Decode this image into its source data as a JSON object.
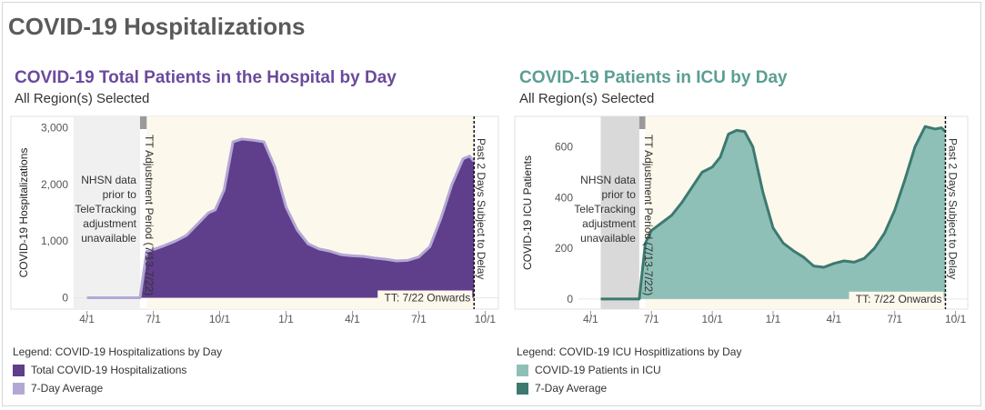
{
  "page": {
    "title": "COVID-19 Hospitalizations"
  },
  "colors": {
    "hosp_fill": "#5f3e8c",
    "hosp_avg": "#b3a8d4",
    "icu_fill": "#8fc0b8",
    "icu_avg": "#3c7a70",
    "title_purple": "#6a4a9c",
    "title_teal": "#5a9e94",
    "shade_left": "#f0f0f0",
    "shade_left_icu": "#d9d9d9",
    "shade_main": "#fdf8ec",
    "bar_gray": "#9a9a9a"
  },
  "charts": [
    {
      "title": "COVID-19 Total Patients in the Hospital by Day",
      "subtitle": "All Region(s) Selected",
      "legend_title": "Legend: COVID-19 Hospitalizations by Day",
      "legend_items": [
        "Total COVID-19 Hospitalizations",
        "7-Day Average"
      ],
      "annotations": {
        "left_note": [
          "NHSN data",
          "prior to",
          "TeleTracking",
          "adjustment",
          "unavailable"
        ],
        "adjustment": "TT Adjustment Period (7/13-7/22)",
        "onwards": "TT: 7/22 Onwards",
        "delay": "Past 2 Days Subject to Delay"
      }
    },
    {
      "title": "COVID-19 Patients in ICU by Day",
      "subtitle": "All Region(s) Selected",
      "legend_title": "Legend: COVID-19 ICU Hospitlizations by Day",
      "legend_items": [
        "COVID-19 Patients in ICU",
        "7-Day Average"
      ],
      "annotations": {
        "left_note": [
          "NHSN data",
          "prior to",
          "TeleTracking",
          "adjustment",
          "unavailable"
        ],
        "adjustment": "TT Adjustment Period (7/13-7/22)",
        "onwards": "TT: 7/22 Onwards",
        "delay": "Past 2 Days Subject to Delay"
      }
    }
  ],
  "chart_data": [
    {
      "type": "area",
      "title": "COVID-19 Total Patients in the Hospital by Day",
      "ylabel": "COVID-19 Hospitalizations",
      "xlabel": "",
      "x_ticks": [
        "4/1",
        "7/1",
        "10/1",
        "1/1",
        "4/1",
        "7/1",
        "10/1"
      ],
      "y_ticks": [
        "0",
        "1,000",
        "2,000",
        "3,000"
      ],
      "y_tick_values": [
        0,
        1000,
        2000,
        3000
      ],
      "ylim": [
        -200,
        3200
      ],
      "xlim_months": [
        -0.6,
        18.6
      ],
      "regions_months": {
        "nhsn_start": -0.6,
        "adjust_start": 2.4,
        "adjust_end": 2.7,
        "delay_line": 17.5
      },
      "series": [
        {
          "name": "Total COVID-19 Hospitalizations",
          "x_months": [
            0.0,
            2.4,
            2.7,
            3.0,
            3.5,
            4.0,
            4.5,
            5.0,
            5.5,
            5.8,
            6.2,
            6.6,
            7.0,
            7.5,
            8.0,
            8.5,
            9.0,
            9.5,
            10.0,
            10.5,
            11.0,
            11.5,
            12.0,
            12.5,
            13.0,
            13.5,
            14.0,
            14.5,
            15.0,
            15.5,
            16.0,
            16.5,
            17.0,
            17.3,
            17.5
          ],
          "values": [
            0,
            0,
            820,
            850,
            920,
            1000,
            1100,
            1300,
            1500,
            1550,
            1900,
            2750,
            2800,
            2780,
            2750,
            2300,
            1600,
            1200,
            950,
            860,
            820,
            760,
            740,
            730,
            700,
            680,
            650,
            660,
            720,
            900,
            1400,
            2000,
            2450,
            2500,
            2400
          ]
        },
        {
          "name": "7-Day Average",
          "x_months": [
            0.0,
            2.4,
            2.7,
            3.0,
            3.5,
            4.0,
            4.5,
            5.0,
            5.5,
            5.8,
            6.2,
            6.6,
            7.0,
            7.5,
            8.0,
            8.5,
            9.0,
            9.5,
            10.0,
            10.5,
            11.0,
            11.5,
            12.0,
            12.5,
            13.0,
            13.5,
            14.0,
            14.5,
            15.0,
            15.5,
            16.0,
            16.5,
            17.0,
            17.3,
            17.5
          ],
          "values": [
            0,
            0,
            820,
            850,
            920,
            1000,
            1100,
            1300,
            1500,
            1550,
            1900,
            2750,
            2800,
            2780,
            2750,
            2300,
            1600,
            1200,
            950,
            860,
            820,
            760,
            740,
            730,
            700,
            680,
            650,
            660,
            720,
            900,
            1400,
            2000,
            2450,
            2500,
            2400
          ]
        }
      ]
    },
    {
      "type": "area",
      "title": "COVID-19 Patients in ICU by Day",
      "ylabel": "COVID-19 ICU Patients",
      "xlabel": "",
      "x_ticks": [
        "4/1",
        "7/1",
        "10/1",
        "1/1",
        "4/1",
        "7/1",
        "10/1"
      ],
      "y_ticks": [
        "0",
        "200",
        "400",
        "600"
      ],
      "y_tick_values": [
        0,
        200,
        400,
        600
      ],
      "ylim": [
        -40,
        720
      ],
      "xlim_months": [
        -0.6,
        18.6
      ],
      "regions_months": {
        "nhsn_start": 0.5,
        "adjust_start": 2.4,
        "adjust_end": 2.7,
        "delay_line": 17.5
      },
      "series": [
        {
          "name": "COVID-19 Patients in ICU",
          "x_months": [
            0.5,
            2.4,
            2.7,
            3.0,
            3.5,
            4.0,
            4.5,
            5.0,
            5.5,
            6.0,
            6.4,
            6.8,
            7.2,
            7.6,
            8.0,
            8.5,
            9.0,
            9.5,
            10.0,
            10.5,
            11.0,
            11.5,
            12.0,
            12.5,
            13.0,
            13.5,
            14.0,
            14.5,
            15.0,
            15.5,
            16.0,
            16.5,
            17.0,
            17.3,
            17.5
          ],
          "values": [
            0,
            0,
            220,
            270,
            300,
            330,
            380,
            440,
            500,
            520,
            560,
            650,
            665,
            660,
            600,
            420,
            280,
            220,
            190,
            165,
            130,
            125,
            140,
            150,
            145,
            160,
            200,
            260,
            350,
            470,
            600,
            680,
            670,
            675,
            660
          ]
        },
        {
          "name": "7-Day Average",
          "x_months": [
            0.5,
            2.4,
            2.7,
            3.0,
            3.5,
            4.0,
            4.5,
            5.0,
            5.5,
            6.0,
            6.4,
            6.8,
            7.2,
            7.6,
            8.0,
            8.5,
            9.0,
            9.5,
            10.0,
            10.5,
            11.0,
            11.5,
            12.0,
            12.5,
            13.0,
            13.5,
            14.0,
            14.5,
            15.0,
            15.5,
            16.0,
            16.5,
            17.0,
            17.3,
            17.5
          ],
          "values": [
            0,
            0,
            220,
            270,
            300,
            330,
            380,
            440,
            500,
            520,
            560,
            650,
            665,
            660,
            600,
            420,
            280,
            220,
            190,
            165,
            130,
            125,
            140,
            150,
            145,
            160,
            200,
            260,
            350,
            470,
            600,
            680,
            670,
            675,
            660
          ]
        }
      ]
    }
  ]
}
